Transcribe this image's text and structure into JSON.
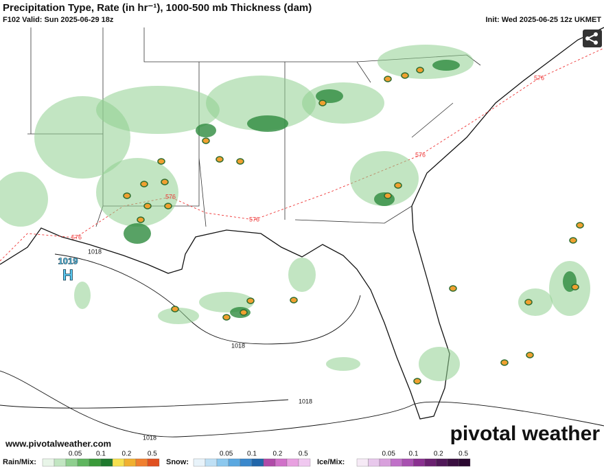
{
  "header": {
    "title": "Precipitation Type, Rate (in hr⁻¹), 1000-500 mb Thickness (dam)",
    "valid": "F102 Valid: Sun 2025-06-29 18z",
    "init": "Init: Wed 2025-06-25 12z UKMET"
  },
  "map": {
    "pressure_labels": [
      "1018",
      "1018",
      "1018",
      "1018"
    ],
    "high_center": {
      "pressure": "1019",
      "symbol": "H"
    },
    "thickness_labels": [
      "576",
      "576",
      "576",
      "576",
      "576"
    ]
  },
  "footer": {
    "website": "www.pivotalweather.com",
    "brand": "pivotal weather"
  },
  "legend": [
    {
      "label": "Rain/Mix:",
      "ticks": [
        "0.05",
        "0.1",
        "0.2",
        "0.5"
      ]
    },
    {
      "label": "Snow:",
      "ticks": [
        "0.05",
        "0.1",
        "0.2",
        "0.5"
      ]
    },
    {
      "label": "Ice/Mix:",
      "ticks": [
        "0.05",
        "0.1",
        "0.2",
        "0.5"
      ]
    }
  ]
}
